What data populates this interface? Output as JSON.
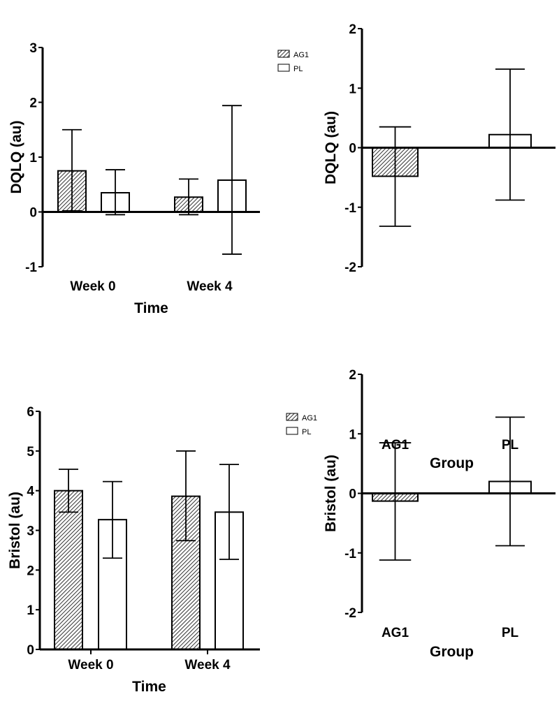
{
  "chart_data": [
    {
      "type": "bar",
      "ylabel": "DQLQ (au)",
      "xlabel": "Time",
      "categories": [
        "Week 0",
        "Week 4"
      ],
      "ylim": [
        -1,
        3
      ],
      "yticks": [
        "-1",
        "0",
        "1",
        "2",
        "3"
      ],
      "legend": {
        "placement": "top-right",
        "entries": [
          "AG1",
          "PL"
        ]
      },
      "series": [
        {
          "name": "AG1",
          "pattern": "hatched",
          "values": [
            0.75,
            0.27
          ],
          "err_low": [
            0.02,
            -0.05
          ],
          "err_high": [
            1.5,
            0.6
          ]
        },
        {
          "name": "PL",
          "pattern": "open",
          "values": [
            0.35,
            0.58
          ],
          "err_low": [
            -0.05,
            -0.77
          ],
          "err_high": [
            0.77,
            1.94
          ]
        }
      ]
    },
    {
      "type": "bar",
      "ylabel": "DQLQ (au)",
      "xlabel": "Group",
      "categories": [
        "AG1",
        "PL"
      ],
      "ylim": [
        -2,
        2
      ],
      "yticks": [
        "-2",
        "-1",
        "0",
        "1",
        "2"
      ],
      "patterns": [
        "hatched",
        "open"
      ],
      "values": [
        -0.48,
        0.22
      ],
      "err_low": [
        -1.32,
        -0.88
      ],
      "err_high": [
        0.35,
        1.32
      ]
    },
    {
      "type": "bar",
      "ylabel": "Bristol (au)",
      "xlabel": "Time",
      "categories": [
        "Week 0",
        "Week 4"
      ],
      "ylim": [
        0,
        6
      ],
      "yticks": [
        "0",
        "1",
        "2",
        "3",
        "4",
        "5",
        "6"
      ],
      "legend": {
        "placement": "top-right",
        "entries": [
          "AG1",
          "PL"
        ]
      },
      "series": [
        {
          "name": "AG1",
          "pattern": "hatched",
          "values": [
            4.0,
            3.86
          ],
          "err_low": [
            3.46,
            2.74
          ],
          "err_high": [
            4.54,
            5.0
          ]
        },
        {
          "name": "PL",
          "pattern": "open",
          "values": [
            3.27,
            3.46
          ],
          "err_low": [
            2.3,
            2.27
          ],
          "err_high": [
            4.23,
            4.66
          ]
        }
      ]
    },
    {
      "type": "bar",
      "ylabel": "Bristol (au)",
      "xlabel": "Group",
      "categories": [
        "AG1",
        "PL"
      ],
      "ylim": [
        -2,
        2
      ],
      "yticks": [
        "-2",
        "-1",
        "0",
        "1",
        "2"
      ],
      "patterns": [
        "hatched",
        "open"
      ],
      "values": [
        -0.13,
        0.2
      ],
      "err_low": [
        -1.12,
        -0.88
      ],
      "err_high": [
        0.85,
        1.28
      ]
    }
  ]
}
